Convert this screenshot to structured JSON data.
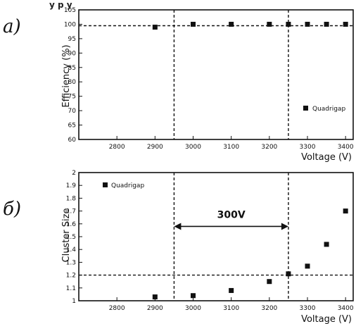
{
  "header_fragment": "y             p                 y",
  "chart_data": [
    {
      "type": "scatter",
      "panel_label": "a)",
      "ylabel": "Efficiency (%)",
      "xlabel": "Voltage (V)",
      "xlim": [
        2700,
        3420
      ],
      "ylim": [
        60,
        105
      ],
      "x_ticks": [
        "2800",
        "2900",
        "3000",
        "3100",
        "3200",
        "3300",
        "3400"
      ],
      "y_ticks": [
        "60",
        "65",
        "70",
        "75",
        "80",
        "85",
        "90",
        "95",
        "100",
        "105"
      ],
      "legend": "Quadrigap",
      "series": [
        {
          "name": "Quadrigap",
          "x": [
            2900,
            3000,
            3100,
            3200,
            3250,
            3300,
            3350,
            3400
          ],
          "y": [
            99,
            100,
            100,
            100,
            100,
            100,
            100,
            100
          ]
        }
      ],
      "reference_lines": {
        "horizontal": [
          99.5
        ],
        "vertical": [
          2950,
          3250
        ]
      }
    },
    {
      "type": "scatter",
      "panel_label": "б)",
      "ylabel": "Cluster Size",
      "xlabel": "Voltage (V)",
      "xlim": [
        2700,
        3420
      ],
      "ylim": [
        1.0,
        2.0
      ],
      "x_ticks": [
        "2800",
        "2900",
        "3000",
        "3100",
        "3200",
        "3300",
        "3400"
      ],
      "y_ticks": [
        "1",
        "1.1",
        "1.2",
        "1.3",
        "1.4",
        "1.5",
        "1.6",
        "1.7",
        "1.8",
        "1.9",
        "2"
      ],
      "legend": "Quadrigap",
      "annotation": "300V",
      "series": [
        {
          "name": "Quadrigap",
          "x": [
            2900,
            3000,
            3100,
            3200,
            3250,
            3300,
            3350,
            3400
          ],
          "y": [
            1.03,
            1.04,
            1.08,
            1.15,
            1.21,
            1.27,
            1.44,
            1.7
          ]
        }
      ],
      "reference_lines": {
        "horizontal": [
          1.2
        ],
        "vertical": [
          2950,
          3250
        ]
      }
    }
  ]
}
